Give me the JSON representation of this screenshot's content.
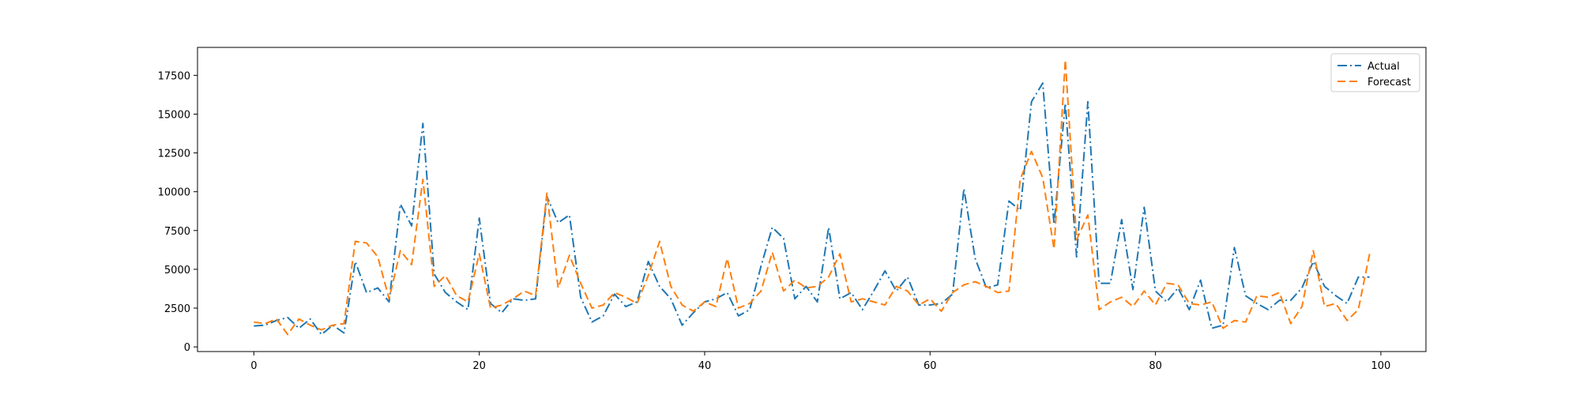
{
  "chart_data": {
    "type": "line",
    "title": "",
    "xlabel": "",
    "ylabel": "",
    "xlim": [
      -5,
      104
    ],
    "ylim": [
      -300,
      19300
    ],
    "xticks": [
      0,
      20,
      40,
      60,
      80,
      100
    ],
    "yticks": [
      0,
      2500,
      5000,
      7500,
      10000,
      12500,
      15000,
      17500
    ],
    "grid": false,
    "legend_position": "top-right",
    "x": [
      0,
      1,
      2,
      3,
      4,
      5,
      6,
      7,
      8,
      9,
      10,
      11,
      12,
      13,
      14,
      15,
      16,
      17,
      18,
      19,
      20,
      21,
      22,
      23,
      24,
      25,
      26,
      27,
      28,
      29,
      30,
      31,
      32,
      33,
      34,
      35,
      36,
      37,
      38,
      39,
      40,
      41,
      42,
      43,
      44,
      45,
      46,
      47,
      48,
      49,
      50,
      51,
      52,
      53,
      54,
      55,
      56,
      57,
      58,
      59,
      60,
      61,
      62,
      63,
      64,
      65,
      66,
      67,
      68,
      69,
      70,
      71,
      72,
      73,
      74,
      75,
      76,
      77,
      78,
      79,
      80,
      81,
      82,
      83,
      84,
      85,
      86,
      87,
      88,
      89,
      90,
      91,
      92,
      93,
      94,
      95,
      96,
      97,
      98,
      99
    ],
    "series": [
      {
        "name": "Actual",
        "color": "#1f77b4",
        "dash": "dashdot",
        "values": [
          1350,
          1400,
          1700,
          1900,
          1200,
          1800,
          800,
          1400,
          900,
          5500,
          3500,
          3800,
          2900,
          9200,
          7800,
          14400,
          4700,
          3500,
          2900,
          2400,
          8300,
          2800,
          2200,
          3100,
          3000,
          3100,
          9700,
          8000,
          8500,
          3200,
          1600,
          2000,
          3400,
          2600,
          2900,
          5500,
          3900,
          3100,
          1400,
          2200,
          2900,
          3100,
          3500,
          2000,
          2400,
          5200,
          7700,
          7000,
          3100,
          3900,
          2900,
          7700,
          3100,
          3500,
          2400,
          3600,
          4900,
          3600,
          4500,
          2700,
          2700,
          2800,
          3400,
          10200,
          5700,
          3800,
          4000,
          9400,
          8800,
          15800,
          17000,
          7900,
          15700,
          5800,
          15800,
          4100,
          4100,
          8200,
          3700,
          9000,
          3600,
          2900,
          3800,
          2400,
          4300,
          1200,
          1400,
          6400,
          3300,
          2800,
          2400,
          3000,
          3000,
          3800,
          5500,
          3900,
          3300,
          2800,
          4500,
          4500
        ]
      },
      {
        "name": "Forecast",
        "color": "#ff7f0e",
        "dash": "dashed",
        "values": [
          1600,
          1500,
          1800,
          800,
          1800,
          1400,
          1100,
          1400,
          1500,
          6800,
          6700,
          5800,
          3100,
          6200,
          5300,
          10800,
          3900,
          4600,
          3300,
          2900,
          6000,
          2500,
          2700,
          3100,
          3600,
          3300,
          9900,
          3800,
          5900,
          4100,
          2500,
          2700,
          3500,
          3200,
          2800,
          4600,
          6800,
          3900,
          2700,
          2300,
          2900,
          2600,
          5700,
          2500,
          2800,
          3600,
          6100,
          3600,
          4300,
          3800,
          3900,
          4500,
          6000,
          2900,
          3100,
          2900,
          2700,
          3900,
          3600,
          2700,
          3100,
          2300,
          3500,
          4000,
          4200,
          3900,
          3500,
          3600,
          10800,
          12600,
          10900,
          6300,
          18500,
          6900,
          8500,
          2400,
          2900,
          3200,
          2600,
          3600,
          2700,
          4100,
          4000,
          2800,
          2700,
          2900,
          1200,
          1700,
          1600,
          3300,
          3200,
          3500,
          1500,
          2600,
          6200,
          2600,
          2800,
          1700,
          2400,
          6000
        ]
      }
    ]
  }
}
